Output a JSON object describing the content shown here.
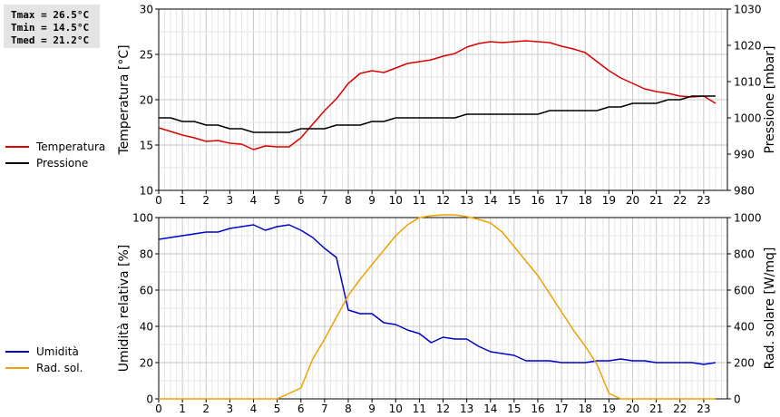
{
  "stats": {
    "tmax": "Tmax = 26.5°C",
    "tmin": "Tmin = 14.5°C",
    "tmed": "Tmed = 21.2°C"
  },
  "chart_data": [
    {
      "type": "line",
      "xlabel": "",
      "xlim": [
        0,
        24
      ],
      "xticks": [
        "0",
        "1",
        "2",
        "3",
        "4",
        "5",
        "6",
        "7",
        "8",
        "9",
        "10",
        "11",
        "12",
        "13",
        "14",
        "15",
        "16",
        "17",
        "18",
        "19",
        "20",
        "21",
        "22",
        "23"
      ],
      "y_left": {
        "label": "Temperatura [°C]",
        "lim": [
          10,
          30
        ],
        "ticks": [
          10,
          15,
          20,
          25,
          30
        ]
      },
      "y_right": {
        "label": "Pressione [mbar]",
        "lim": [
          980,
          1030
        ],
        "ticks": [
          980,
          990,
          1000,
          1010,
          1020,
          1030
        ]
      },
      "grid": true,
      "legend": "left",
      "series": [
        {
          "name": "Temperatura",
          "color": "#dd0000",
          "axis": "left",
          "x": [
            0,
            0.5,
            1,
            1.5,
            2,
            2.5,
            3,
            3.5,
            4,
            4.5,
            5,
            5.5,
            6,
            6.5,
            7,
            7.5,
            8,
            8.5,
            9,
            9.5,
            10,
            10.5,
            11,
            11.5,
            12,
            12.5,
            13,
            13.5,
            14,
            14.5,
            15,
            15.5,
            16,
            16.5,
            17,
            17.5,
            18,
            18.5,
            19,
            19.5,
            20,
            20.5,
            21,
            21.5,
            22,
            22.5,
            23,
            23.5
          ],
          "y": [
            16.9,
            16.5,
            16.1,
            15.8,
            15.4,
            15.5,
            15.2,
            15.1,
            14.5,
            14.9,
            14.8,
            14.8,
            15.8,
            17.3,
            18.8,
            20.1,
            21.8,
            22.9,
            23.2,
            23.0,
            23.5,
            24.0,
            24.2,
            24.4,
            24.8,
            25.1,
            25.8,
            26.2,
            26.4,
            26.3,
            26.4,
            26.5,
            26.4,
            26.3,
            25.9,
            25.6,
            25.2,
            24.2,
            23.2,
            22.4,
            21.8,
            21.2,
            20.9,
            20.7,
            20.4,
            20.3,
            20.4,
            19.6
          ]
        },
        {
          "name": "Pressione",
          "color": "#000000",
          "axis": "right",
          "x": [
            0,
            0.5,
            1,
            1.5,
            2,
            2.5,
            3,
            3.5,
            4,
            4.5,
            5,
            5.5,
            6,
            6.5,
            7,
            7.5,
            8,
            8.5,
            9,
            9.5,
            10,
            10.5,
            11,
            11.5,
            12,
            12.5,
            13,
            13.5,
            14,
            14.5,
            15,
            15.5,
            16,
            16.5,
            17,
            17.5,
            18,
            18.5,
            19,
            19.5,
            20,
            20.5,
            21,
            21.5,
            22,
            22.5,
            23,
            23.5
          ],
          "y": [
            1000,
            1000,
            999,
            999,
            998,
            998,
            997,
            997,
            996,
            996,
            996,
            996,
            997,
            997,
            997,
            998,
            998,
            998,
            999,
            999,
            1000,
            1000,
            1000,
            1000,
            1000,
            1000,
            1001,
            1001,
            1001,
            1001,
            1001,
            1001,
            1001,
            1002,
            1002,
            1002,
            1002,
            1002,
            1003,
            1003,
            1004,
            1004,
            1004,
            1005,
            1005,
            1006,
            1006,
            1006
          ]
        }
      ]
    },
    {
      "type": "line",
      "xlabel": "",
      "xlim": [
        0,
        24
      ],
      "xticks": [
        "0",
        "1",
        "2",
        "3",
        "4",
        "5",
        "6",
        "7",
        "8",
        "9",
        "10",
        "11",
        "12",
        "13",
        "14",
        "15",
        "16",
        "17",
        "18",
        "19",
        "20",
        "21",
        "22",
        "23"
      ],
      "y_left": {
        "label": "Umidità relativa [%]",
        "lim": [
          0,
          100
        ],
        "ticks": [
          0,
          20,
          40,
          60,
          80,
          100
        ]
      },
      "y_right": {
        "label": "Rad. solare [W/mq]",
        "lim": [
          0,
          1000
        ],
        "ticks": [
          0,
          200,
          400,
          600,
          800,
          1000
        ]
      },
      "grid": true,
      "legend": "left",
      "series": [
        {
          "name": "Umidità",
          "color": "#0000cc",
          "axis": "left",
          "x": [
            0,
            0.5,
            1,
            1.5,
            2,
            2.5,
            3,
            3.5,
            4,
            4.5,
            5,
            5.5,
            6,
            6.5,
            7,
            7.5,
            8,
            8.5,
            9,
            9.5,
            10,
            10.5,
            11,
            11.5,
            12,
            12.5,
            13,
            13.5,
            14,
            14.5,
            15,
            15.5,
            16,
            16.5,
            17,
            17.5,
            18,
            18.5,
            19,
            19.5,
            20,
            20.5,
            21,
            21.5,
            22,
            22.5,
            23,
            23.5
          ],
          "y": [
            88,
            89,
            90,
            91,
            92,
            92,
            94,
            95,
            96,
            93,
            95,
            96,
            93,
            89,
            83,
            78,
            49,
            47,
            47,
            42,
            41,
            38,
            36,
            31,
            34,
            33,
            33,
            29,
            26,
            25,
            24,
            21,
            21,
            21,
            20,
            20,
            20,
            21,
            21,
            22,
            21,
            21,
            20,
            20,
            20,
            20,
            19,
            20
          ]
        },
        {
          "name": "Rad. sol.",
          "color": "#f0a000",
          "axis": "right",
          "x": [
            0,
            0.5,
            1,
            1.5,
            2,
            2.5,
            3,
            3.5,
            4,
            4.5,
            5,
            5.5,
            6,
            6.5,
            7,
            7.5,
            8,
            8.5,
            9,
            9.5,
            10,
            10.5,
            11,
            11.5,
            12,
            12.5,
            13,
            13.5,
            14,
            14.5,
            15,
            15.5,
            16,
            16.5,
            17,
            17.5,
            18,
            18.5,
            19,
            19.5,
            20,
            20.5,
            21,
            21.5,
            22,
            22.5,
            23,
            23.5
          ],
          "y": [
            0,
            0,
            0,
            0,
            0,
            0,
            0,
            0,
            0,
            0,
            0,
            30,
            60,
            220,
            330,
            450,
            570,
            660,
            740,
            820,
            900,
            960,
            1000,
            1010,
            1015,
            1015,
            1005,
            990,
            970,
            920,
            840,
            760,
            680,
            580,
            480,
            380,
            290,
            190,
            30,
            0,
            0,
            0,
            0,
            0,
            0,
            0,
            0,
            0
          ]
        }
      ]
    }
  ]
}
